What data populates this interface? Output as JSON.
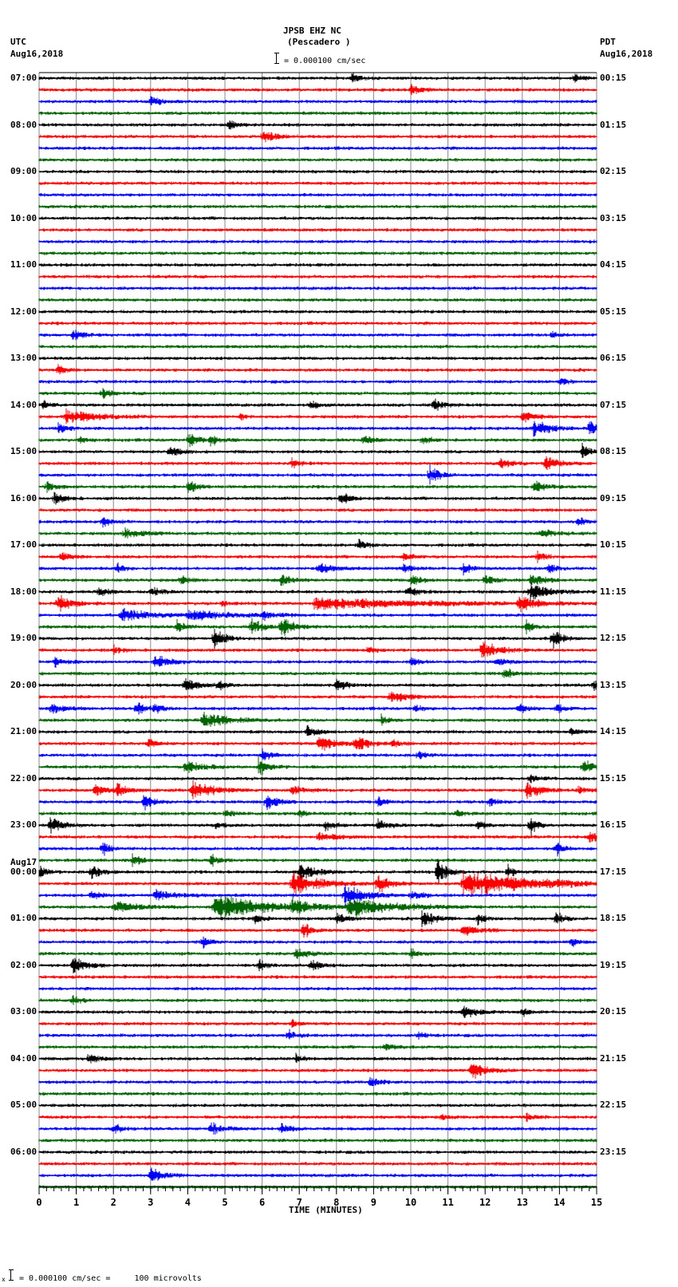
{
  "header": {
    "station": "JPSB EHZ NC",
    "location": "(Pescadero )",
    "left_tz": "UTC",
    "left_date": "Aug16,2018",
    "right_tz": "PDT",
    "right_date": "Aug16,2018",
    "scale_text": "= 0.000100 cm/sec"
  },
  "footer": {
    "scale_prefix": "x",
    "scale_text": "= 0.000100 cm/sec =     100 microvolts"
  },
  "chart_data": {
    "type": "line",
    "title": "JPSB EHZ NC (Pescadero ) helicorder",
    "xlabel": "TIME (MINUTES)",
    "ylabel": "",
    "x_ticks": [
      0,
      1,
      2,
      3,
      4,
      5,
      6,
      7,
      8,
      9,
      10,
      11,
      12,
      13,
      14,
      15
    ],
    "xlim": [
      0,
      15
    ],
    "grid": true,
    "rows_per_hour": 4,
    "trace_colors": [
      "#000000",
      "#ff0000",
      "#0000ff",
      "#006400"
    ],
    "left_hour_labels": [
      "07:00",
      "08:00",
      "09:00",
      "10:00",
      "11:00",
      "12:00",
      "13:00",
      "14:00",
      "15:00",
      "16:00",
      "17:00",
      "18:00",
      "19:00",
      "20:00",
      "21:00",
      "22:00",
      "23:00",
      "00:00",
      "01:00",
      "02:00",
      "03:00",
      "04:00",
      "05:00",
      "06:00"
    ],
    "left_date_change": {
      "index": 17,
      "label": "Aug17"
    },
    "right_hour_labels": [
      "00:15",
      "01:15",
      "02:15",
      "03:15",
      "04:15",
      "05:15",
      "06:15",
      "07:15",
      "08:15",
      "09:15",
      "10:15",
      "11:15",
      "12:15",
      "13:15",
      "14:15",
      "15:15",
      "16:15",
      "17:15",
      "18:15",
      "19:15",
      "20:15",
      "21:15",
      "22:15",
      "23:15"
    ],
    "events": [
      {
        "row": 0,
        "t": 8.4,
        "amp": 9,
        "dur": 0.3
      },
      {
        "row": 0,
        "t": 14.4,
        "amp": 6,
        "dur": 0.3
      },
      {
        "row": 1,
        "t": 10.0,
        "amp": 7,
        "dur": 0.4
      },
      {
        "row": 2,
        "t": 3.0,
        "amp": 8,
        "dur": 0.4
      },
      {
        "row": 4,
        "t": 5.1,
        "amp": 8,
        "dur": 0.3
      },
      {
        "row": 5,
        "t": 6.0,
        "amp": 10,
        "dur": 0.5
      },
      {
        "row": 22,
        "t": 0.9,
        "amp": 8,
        "dur": 0.4
      },
      {
        "row": 22,
        "t": 13.8,
        "amp": 7,
        "dur": 0.3
      },
      {
        "row": 25,
        "t": 0.5,
        "amp": 8,
        "dur": 0.3
      },
      {
        "row": 26,
        "t": 14.0,
        "amp": 6,
        "dur": 0.3
      },
      {
        "row": 27,
        "t": 1.7,
        "amp": 8,
        "dur": 0.3
      },
      {
        "row": 28,
        "t": 0.1,
        "amp": 10,
        "dur": 0.2
      },
      {
        "row": 28,
        "t": 7.3,
        "amp": 7,
        "dur": 0.3
      },
      {
        "row": 28,
        "t": 10.6,
        "amp": 10,
        "dur": 0.4
      },
      {
        "row": 29,
        "t": 0.7,
        "amp": 10,
        "dur": 1.2
      },
      {
        "row": 29,
        "t": 5.4,
        "amp": 6,
        "dur": 0.2
      },
      {
        "row": 29,
        "t": 13.0,
        "amp": 9,
        "dur": 0.5
      },
      {
        "row": 30,
        "t": 0.5,
        "amp": 8,
        "dur": 0.4
      },
      {
        "row": 30,
        "t": 13.3,
        "amp": 14,
        "dur": 0.6
      },
      {
        "row": 30,
        "t": 14.8,
        "amp": 14,
        "dur": 0.3
      },
      {
        "row": 31,
        "t": 1.1,
        "amp": 6,
        "dur": 0.3
      },
      {
        "row": 31,
        "t": 4.0,
        "amp": 12,
        "dur": 0.4
      },
      {
        "row": 31,
        "t": 4.6,
        "amp": 8,
        "dur": 0.4
      },
      {
        "row": 31,
        "t": 8.7,
        "amp": 7,
        "dur": 0.4
      },
      {
        "row": 31,
        "t": 10.3,
        "amp": 7,
        "dur": 0.3
      },
      {
        "row": 32,
        "t": 3.5,
        "amp": 9,
        "dur": 0.4
      },
      {
        "row": 32,
        "t": 14.6,
        "amp": 10,
        "dur": 0.3
      },
      {
        "row": 33,
        "t": 6.8,
        "amp": 8,
        "dur": 0.3
      },
      {
        "row": 33,
        "t": 12.4,
        "amp": 8,
        "dur": 0.4
      },
      {
        "row": 33,
        "t": 13.6,
        "amp": 10,
        "dur": 0.6
      },
      {
        "row": 34,
        "t": 10.5,
        "amp": 14,
        "dur": 0.4
      },
      {
        "row": 35,
        "t": 0.2,
        "amp": 9,
        "dur": 0.3
      },
      {
        "row": 35,
        "t": 4.0,
        "amp": 12,
        "dur": 0.3
      },
      {
        "row": 35,
        "t": 13.3,
        "amp": 10,
        "dur": 0.4
      },
      {
        "row": 36,
        "t": 0.4,
        "amp": 10,
        "dur": 0.4
      },
      {
        "row": 36,
        "t": 8.1,
        "amp": 10,
        "dur": 0.4
      },
      {
        "row": 38,
        "t": 1.7,
        "amp": 9,
        "dur": 0.3
      },
      {
        "row": 38,
        "t": 14.5,
        "amp": 8,
        "dur": 0.3
      },
      {
        "row": 39,
        "t": 2.3,
        "amp": 6,
        "dur": 0.8
      },
      {
        "row": 39,
        "t": 13.5,
        "amp": 6,
        "dur": 0.6
      },
      {
        "row": 40,
        "t": 8.6,
        "amp": 8,
        "dur": 0.3
      },
      {
        "row": 41,
        "t": 0.6,
        "amp": 8,
        "dur": 0.4
      },
      {
        "row": 41,
        "t": 9.8,
        "amp": 8,
        "dur": 0.3
      },
      {
        "row": 41,
        "t": 13.4,
        "amp": 9,
        "dur": 0.3
      },
      {
        "row": 42,
        "t": 2.1,
        "amp": 7,
        "dur": 0.3
      },
      {
        "row": 42,
        "t": 7.5,
        "amp": 8,
        "dur": 0.6
      },
      {
        "row": 42,
        "t": 9.8,
        "amp": 7,
        "dur": 0.3
      },
      {
        "row": 42,
        "t": 11.4,
        "amp": 10,
        "dur": 0.3
      },
      {
        "row": 42,
        "t": 13.7,
        "amp": 7,
        "dur": 0.3
      },
      {
        "row": 43,
        "t": 3.8,
        "amp": 8,
        "dur": 0.3
      },
      {
        "row": 43,
        "t": 6.5,
        "amp": 10,
        "dur": 0.4
      },
      {
        "row": 43,
        "t": 10.0,
        "amp": 9,
        "dur": 0.4
      },
      {
        "row": 43,
        "t": 12.0,
        "amp": 10,
        "dur": 0.3
      },
      {
        "row": 43,
        "t": 13.2,
        "amp": 10,
        "dur": 0.5
      },
      {
        "row": 44,
        "t": 1.6,
        "amp": 7,
        "dur": 0.4
      },
      {
        "row": 44,
        "t": 3.0,
        "amp": 7,
        "dur": 0.4
      },
      {
        "row": 44,
        "t": 9.9,
        "amp": 8,
        "dur": 0.4
      },
      {
        "row": 44,
        "t": 13.2,
        "amp": 14,
        "dur": 0.7
      },
      {
        "row": 45,
        "t": 0.5,
        "amp": 12,
        "dur": 0.6
      },
      {
        "row": 45,
        "t": 4.9,
        "amp": 5,
        "dur": 0.3
      },
      {
        "row": 45,
        "t": 7.4,
        "amp": 9,
        "dur": 4.2
      },
      {
        "row": 45,
        "t": 12.9,
        "amp": 12,
        "dur": 0.6
      },
      {
        "row": 46,
        "t": 2.2,
        "amp": 10,
        "dur": 1.2
      },
      {
        "row": 46,
        "t": 4.0,
        "amp": 8,
        "dur": 1.5
      },
      {
        "row": 46,
        "t": 6.0,
        "amp": 6,
        "dur": 0.5
      },
      {
        "row": 47,
        "t": 3.7,
        "amp": 10,
        "dur": 0.3
      },
      {
        "row": 47,
        "t": 5.7,
        "amp": 12,
        "dur": 0.5
      },
      {
        "row": 47,
        "t": 6.5,
        "amp": 14,
        "dur": 0.5
      },
      {
        "row": 47,
        "t": 13.1,
        "amp": 9,
        "dur": 0.3
      },
      {
        "row": 48,
        "t": 4.7,
        "amp": 16,
        "dur": 0.4
      },
      {
        "row": 48,
        "t": 13.8,
        "amp": 14,
        "dur": 0.4
      },
      {
        "row": 49,
        "t": 2.0,
        "amp": 6,
        "dur": 0.3
      },
      {
        "row": 49,
        "t": 8.8,
        "amp": 6,
        "dur": 0.3
      },
      {
        "row": 49,
        "t": 11.9,
        "amp": 16,
        "dur": 0.6
      },
      {
        "row": 50,
        "t": 0.4,
        "amp": 8,
        "dur": 0.4
      },
      {
        "row": 50,
        "t": 3.1,
        "amp": 10,
        "dur": 0.6
      },
      {
        "row": 50,
        "t": 10.0,
        "amp": 7,
        "dur": 0.3
      },
      {
        "row": 50,
        "t": 12.3,
        "amp": 8,
        "dur": 0.4
      },
      {
        "row": 51,
        "t": 12.5,
        "amp": 9,
        "dur": 0.4
      },
      {
        "row": 52,
        "t": 3.9,
        "amp": 12,
        "dur": 0.5
      },
      {
        "row": 52,
        "t": 4.8,
        "amp": 8,
        "dur": 0.3
      },
      {
        "row": 52,
        "t": 8.0,
        "amp": 10,
        "dur": 0.4
      },
      {
        "row": 52,
        "t": 14.9,
        "amp": 8,
        "dur": 0.2
      },
      {
        "row": 53,
        "t": 9.4,
        "amp": 8,
        "dur": 0.8
      },
      {
        "row": 54,
        "t": 0.3,
        "amp": 7,
        "dur": 0.6
      },
      {
        "row": 54,
        "t": 2.6,
        "amp": 8,
        "dur": 0.5
      },
      {
        "row": 54,
        "t": 3.1,
        "amp": 7,
        "dur": 0.3
      },
      {
        "row": 54,
        "t": 10.1,
        "amp": 6,
        "dur": 0.3
      },
      {
        "row": 54,
        "t": 12.9,
        "amp": 10,
        "dur": 0.3
      },
      {
        "row": 54,
        "t": 13.9,
        "amp": 7,
        "dur": 0.3
      },
      {
        "row": 55,
        "t": 4.4,
        "amp": 12,
        "dur": 1.0
      },
      {
        "row": 55,
        "t": 9.2,
        "amp": 8,
        "dur": 0.3
      },
      {
        "row": 56,
        "t": 7.2,
        "amp": 8,
        "dur": 0.4
      },
      {
        "row": 56,
        "t": 14.3,
        "amp": 7,
        "dur": 0.3
      },
      {
        "row": 57,
        "t": 2.9,
        "amp": 8,
        "dur": 0.3
      },
      {
        "row": 57,
        "t": 7.5,
        "amp": 14,
        "dur": 0.7
      },
      {
        "row": 57,
        "t": 8.5,
        "amp": 14,
        "dur": 0.5
      },
      {
        "row": 57,
        "t": 9.5,
        "amp": 6,
        "dur": 0.3
      },
      {
        "row": 58,
        "t": 6.0,
        "amp": 10,
        "dur": 0.3
      },
      {
        "row": 58,
        "t": 10.2,
        "amp": 6,
        "dur": 0.3
      },
      {
        "row": 59,
        "t": 3.9,
        "amp": 10,
        "dur": 0.6
      },
      {
        "row": 59,
        "t": 5.9,
        "amp": 14,
        "dur": 0.4
      },
      {
        "row": 59,
        "t": 14.6,
        "amp": 10,
        "dur": 0.5
      },
      {
        "row": 60,
        "t": 13.2,
        "amp": 8,
        "dur": 0.3
      },
      {
        "row": 61,
        "t": 1.5,
        "amp": 10,
        "dur": 0.4
      },
      {
        "row": 61,
        "t": 2.1,
        "amp": 10,
        "dur": 0.4
      },
      {
        "row": 61,
        "t": 4.1,
        "amp": 14,
        "dur": 0.8
      },
      {
        "row": 61,
        "t": 6.8,
        "amp": 6,
        "dur": 0.6
      },
      {
        "row": 61,
        "t": 13.1,
        "amp": 16,
        "dur": 0.5
      },
      {
        "row": 61,
        "t": 14.5,
        "amp": 7,
        "dur": 0.3
      },
      {
        "row": 62,
        "t": 2.8,
        "amp": 14,
        "dur": 0.4
      },
      {
        "row": 62,
        "t": 6.1,
        "amp": 14,
        "dur": 0.4
      },
      {
        "row": 62,
        "t": 9.1,
        "amp": 8,
        "dur": 0.3
      },
      {
        "row": 62,
        "t": 12.1,
        "amp": 8,
        "dur": 0.3
      },
      {
        "row": 63,
        "t": 5.0,
        "amp": 6,
        "dur": 0.3
      },
      {
        "row": 63,
        "t": 7.0,
        "amp": 6,
        "dur": 0.3
      },
      {
        "row": 63,
        "t": 11.2,
        "amp": 6,
        "dur": 0.3
      },
      {
        "row": 64,
        "t": 0.3,
        "amp": 12,
        "dur": 0.5
      },
      {
        "row": 64,
        "t": 4.7,
        "amp": 6,
        "dur": 0.3
      },
      {
        "row": 64,
        "t": 7.7,
        "amp": 10,
        "dur": 0.3
      },
      {
        "row": 64,
        "t": 9.1,
        "amp": 10,
        "dur": 0.4
      },
      {
        "row": 64,
        "t": 11.8,
        "amp": 8,
        "dur": 0.3
      },
      {
        "row": 64,
        "t": 13.2,
        "amp": 14,
        "dur": 0.3
      },
      {
        "row": 65,
        "t": 7.5,
        "amp": 6,
        "dur": 0.8
      },
      {
        "row": 65,
        "t": 14.8,
        "amp": 10,
        "dur": 0.4
      },
      {
        "row": 66,
        "t": 1.7,
        "amp": 10,
        "dur": 0.3
      },
      {
        "row": 66,
        "t": 13.9,
        "amp": 12,
        "dur": 0.3
      },
      {
        "row": 67,
        "t": 2.5,
        "amp": 8,
        "dur": 0.4
      },
      {
        "row": 67,
        "t": 4.6,
        "amp": 10,
        "dur": 0.3
      },
      {
        "row": 68,
        "t": 0.0,
        "amp": 10,
        "dur": 0.3
      },
      {
        "row": 68,
        "t": 1.4,
        "amp": 10,
        "dur": 0.4
      },
      {
        "row": 68,
        "t": 7.0,
        "amp": 14,
        "dur": 0.6
      },
      {
        "row": 68,
        "t": 10.7,
        "amp": 18,
        "dur": 0.4
      },
      {
        "row": 68,
        "t": 12.6,
        "amp": 10,
        "dur": 0.3
      },
      {
        "row": 69,
        "t": 6.8,
        "amp": 16,
        "dur": 1.2
      },
      {
        "row": 69,
        "t": 9.1,
        "amp": 16,
        "dur": 0.5
      },
      {
        "row": 69,
        "t": 11.4,
        "amp": 18,
        "dur": 3.0
      },
      {
        "row": 70,
        "t": 1.4,
        "amp": 8,
        "dur": 0.4
      },
      {
        "row": 70,
        "t": 3.1,
        "amp": 8,
        "dur": 0.8
      },
      {
        "row": 70,
        "t": 8.2,
        "amp": 16,
        "dur": 0.8
      },
      {
        "row": 70,
        "t": 10.0,
        "amp": 6,
        "dur": 0.5
      },
      {
        "row": 71,
        "t": 2.0,
        "amp": 8,
        "dur": 1.0
      },
      {
        "row": 71,
        "t": 4.7,
        "amp": 20,
        "dur": 2.0
      },
      {
        "row": 71,
        "t": 6.8,
        "amp": 12,
        "dur": 0.6
      },
      {
        "row": 71,
        "t": 8.3,
        "amp": 14,
        "dur": 1.8
      },
      {
        "row": 72,
        "t": 5.8,
        "amp": 8,
        "dur": 0.3
      },
      {
        "row": 72,
        "t": 8.0,
        "amp": 8,
        "dur": 0.4
      },
      {
        "row": 72,
        "t": 10.3,
        "amp": 12,
        "dur": 0.5
      },
      {
        "row": 72,
        "t": 11.8,
        "amp": 8,
        "dur": 0.3
      },
      {
        "row": 72,
        "t": 13.9,
        "amp": 12,
        "dur": 0.3
      },
      {
        "row": 73,
        "t": 7.1,
        "amp": 14,
        "dur": 0.3
      },
      {
        "row": 73,
        "t": 11.4,
        "amp": 8,
        "dur": 0.6
      },
      {
        "row": 74,
        "t": 4.4,
        "amp": 8,
        "dur": 0.3
      },
      {
        "row": 74,
        "t": 14.3,
        "amp": 6,
        "dur": 0.3
      },
      {
        "row": 75,
        "t": 6.9,
        "amp": 8,
        "dur": 0.5
      },
      {
        "row": 75,
        "t": 10.0,
        "amp": 8,
        "dur": 0.3
      },
      {
        "row": 76,
        "t": 0.9,
        "amp": 16,
        "dur": 0.5
      },
      {
        "row": 76,
        "t": 5.9,
        "amp": 9,
        "dur": 0.3
      },
      {
        "row": 76,
        "t": 7.3,
        "amp": 9,
        "dur": 0.4
      },
      {
        "row": 79,
        "t": 0.9,
        "amp": 8,
        "dur": 0.3
      },
      {
        "row": 80,
        "t": 11.4,
        "amp": 12,
        "dur": 0.5
      },
      {
        "row": 80,
        "t": 13.0,
        "amp": 6,
        "dur": 0.3
      },
      {
        "row": 81,
        "t": 6.8,
        "amp": 6,
        "dur": 0.3
      },
      {
        "row": 82,
        "t": 6.7,
        "amp": 8,
        "dur": 0.3
      },
      {
        "row": 82,
        "t": 10.2,
        "amp": 6,
        "dur": 0.3
      },
      {
        "row": 83,
        "t": 9.3,
        "amp": 6,
        "dur": 0.4
      },
      {
        "row": 84,
        "t": 1.3,
        "amp": 8,
        "dur": 0.4
      },
      {
        "row": 84,
        "t": 6.9,
        "amp": 7,
        "dur": 0.3
      },
      {
        "row": 85,
        "t": 11.6,
        "amp": 16,
        "dur": 0.6
      },
      {
        "row": 86,
        "t": 8.9,
        "amp": 10,
        "dur": 0.3
      },
      {
        "row": 89,
        "t": 10.8,
        "amp": 6,
        "dur": 0.3
      },
      {
        "row": 89,
        "t": 13.1,
        "amp": 6,
        "dur": 0.3
      },
      {
        "row": 90,
        "t": 2.0,
        "amp": 8,
        "dur": 0.3
      },
      {
        "row": 90,
        "t": 4.6,
        "amp": 10,
        "dur": 0.5
      },
      {
        "row": 90,
        "t": 6.5,
        "amp": 7,
        "dur": 0.4
      },
      {
        "row": 94,
        "t": 3.0,
        "amp": 12,
        "dur": 0.5
      }
    ]
  }
}
